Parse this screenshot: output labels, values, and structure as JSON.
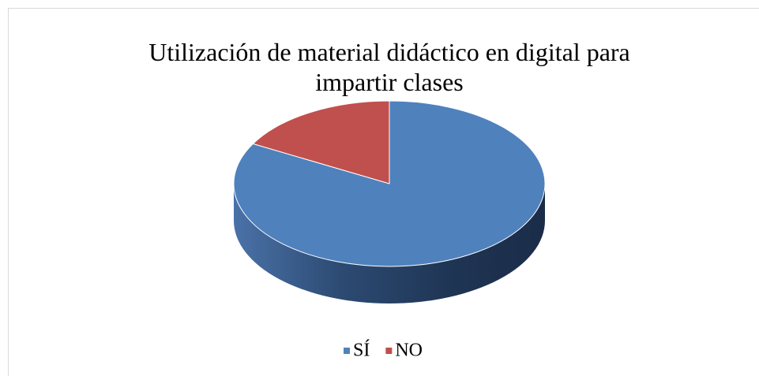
{
  "chart_data": {
    "type": "pie",
    "title": "Utilización de material didáctico en digital para impartir clases",
    "categories": [
      "SÍ",
      "NO"
    ],
    "values": [
      83,
      17
    ],
    "colors": [
      "#4f81bd",
      "#c0504d"
    ],
    "legend": "bottom"
  }
}
